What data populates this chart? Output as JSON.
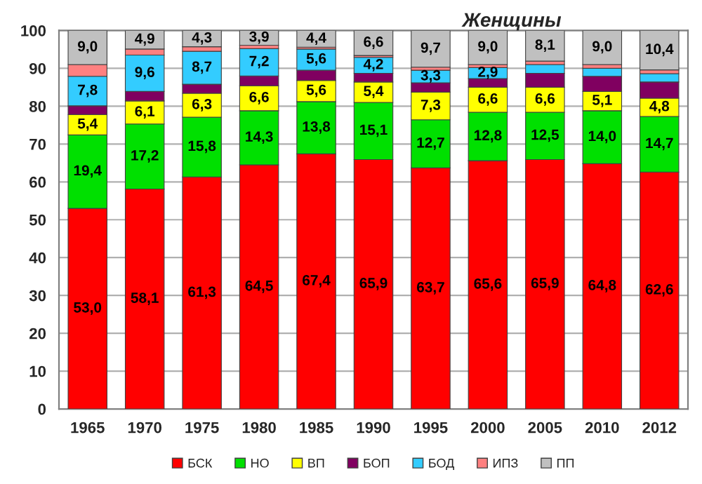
{
  "chart_data": {
    "type": "bar",
    "title": "Женщины",
    "stacked": true,
    "categories": [
      "1965",
      "1970",
      "1975",
      "1980",
      "1985",
      "1990",
      "1995",
      "2000",
      "2005",
      "2010",
      "2012"
    ],
    "series": [
      {
        "name": "БСК",
        "color": "#ff0000",
        "values": [
          53.0,
          58.1,
          61.3,
          64.5,
          67.4,
          65.9,
          63.7,
          65.6,
          65.9,
          64.8,
          62.6
        ],
        "value_labels": [
          "53,0",
          "58,1",
          "61,3",
          "64,5",
          "67,4",
          "65,9",
          "63,7",
          "65,6",
          "65,9",
          "64,8",
          "62,6"
        ]
      },
      {
        "name": "НО",
        "color": "#00e000",
        "values": [
          19.4,
          17.2,
          15.8,
          14.3,
          13.8,
          15.1,
          12.7,
          12.8,
          12.5,
          14.0,
          14.7
        ],
        "value_labels": [
          "19,4",
          "17,2",
          "15,8",
          "14,3",
          "13,8",
          "15,1",
          "12,7",
          "12,8",
          "12,5",
          "14,0",
          "14,7"
        ]
      },
      {
        "name": "ВП",
        "color": "#ffff00",
        "values": [
          5.4,
          6.1,
          6.3,
          6.6,
          5.6,
          5.4,
          7.3,
          6.6,
          6.6,
          5.1,
          4.8
        ],
        "value_labels": [
          "5,4",
          "6,1",
          "6,3",
          "6,6",
          "5,6",
          "5,4",
          "7,3",
          "6,6",
          "6,6",
          "5,1",
          "4,8"
        ]
      },
      {
        "name": "БОП",
        "color": "#800060",
        "values": [
          2.3,
          2.5,
          2.4,
          2.6,
          2.7,
          2.3,
          2.5,
          2.3,
          3.7,
          4.0,
          4.3
        ]
      },
      {
        "name": "БОД",
        "color": "#33ccff",
        "values": [
          7.8,
          9.6,
          8.7,
          7.2,
          5.6,
          4.2,
          3.3,
          2.9,
          2.3,
          2.1,
          2.2
        ],
        "value_labels": [
          "7,8",
          "9,6",
          "8,7",
          "7,2",
          "5,6",
          "4,2",
          "3,3",
          "2,9",
          null,
          null,
          null
        ]
      },
      {
        "name": "ИПЗ",
        "color": "#ff8080",
        "values": [
          3.1,
          1.6,
          1.2,
          0.9,
          0.5,
          0.5,
          0.8,
          0.8,
          0.9,
          1.0,
          1.0
        ]
      },
      {
        "name": "ПП",
        "color": "#c0c0c0",
        "values": [
          9.0,
          4.9,
          4.3,
          3.9,
          4.4,
          6.6,
          9.7,
          9.0,
          8.1,
          9.0,
          10.4
        ],
        "value_labels": [
          "9,0",
          "4,9",
          "4,3",
          "3,9",
          "4,4",
          "6,6",
          "9,7",
          "9,0",
          "8,1",
          "9,0",
          "10,4"
        ]
      }
    ],
    "ylim": [
      0,
      100
    ],
    "yticks": [
      0,
      10,
      20,
      30,
      40,
      50,
      60,
      70,
      80,
      90,
      100
    ],
    "grid": "y",
    "legend": "bottom"
  }
}
